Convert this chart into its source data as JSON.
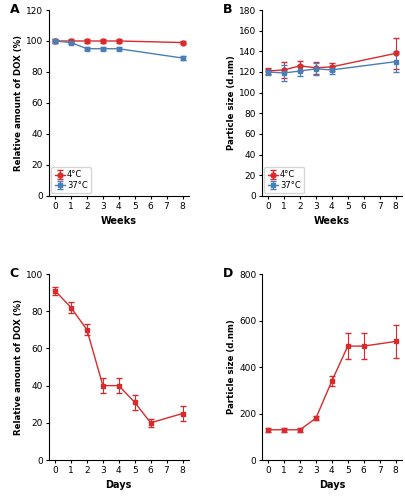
{
  "A": {
    "x": [
      0,
      1,
      2,
      3,
      4,
      8
    ],
    "red_y": [
      100,
      100,
      100,
      100,
      100,
      99
    ],
    "red_err": [
      1,
      1,
      1,
      1,
      1,
      1
    ],
    "blue_y": [
      100,
      99,
      95,
      95,
      95,
      89
    ],
    "blue_err": [
      1,
      1,
      1,
      1,
      1,
      1
    ],
    "ylabel": "Relative amount of DOX (%)",
    "xlabel": "Weeks",
    "ylim": [
      0,
      120
    ],
    "yticks": [
      0,
      20,
      40,
      60,
      80,
      100,
      120
    ],
    "xticks": [
      0,
      1,
      2,
      3,
      4,
      5,
      6,
      7,
      8
    ],
    "label": "A"
  },
  "B": {
    "x": [
      0,
      1,
      2,
      3,
      4,
      8
    ],
    "red_y": [
      121,
      122,
      126,
      124,
      125,
      138
    ],
    "red_err": [
      3,
      8,
      5,
      6,
      4,
      15
    ],
    "blue_y": [
      120,
      119,
      121,
      123,
      122,
      130
    ],
    "blue_err": [
      3,
      8,
      5,
      6,
      4,
      10
    ],
    "ylabel": "Particle size (d.nm)",
    "xlabel": "Weeks",
    "ylim": [
      0,
      180
    ],
    "yticks": [
      0,
      20,
      40,
      60,
      80,
      100,
      120,
      140,
      160,
      180
    ],
    "xticks": [
      0,
      1,
      2,
      3,
      4,
      5,
      6,
      7,
      8
    ],
    "label": "B"
  },
  "C": {
    "x": [
      0,
      1,
      2,
      3,
      4,
      5,
      6,
      8
    ],
    "red_y": [
      91,
      82,
      70,
      40,
      40,
      31,
      20,
      25
    ],
    "red_err": [
      2,
      3,
      3,
      4,
      4,
      4,
      2,
      4
    ],
    "ylabel": "Relative amount of DOX (%)",
    "xlabel": "Days",
    "ylim": [
      0,
      100
    ],
    "yticks": [
      0,
      20,
      40,
      60,
      80,
      100
    ],
    "xticks": [
      0,
      1,
      2,
      3,
      4,
      5,
      6,
      7,
      8
    ],
    "label": "C"
  },
  "D": {
    "x": [
      0,
      1,
      2,
      3,
      4,
      5,
      6,
      8
    ],
    "red_y": [
      130,
      130,
      130,
      180,
      340,
      490,
      490,
      510
    ],
    "red_err": [
      8,
      8,
      8,
      8,
      20,
      55,
      55,
      70
    ],
    "ylabel": "Particle size (d.nm)",
    "xlabel": "Days",
    "ylim": [
      0,
      800
    ],
    "yticks": [
      0,
      200,
      400,
      600,
      800
    ],
    "xticks": [
      0,
      1,
      2,
      3,
      4,
      5,
      6,
      7,
      8
    ],
    "label": "D"
  },
  "red_color": "#d92b2b",
  "blue_color": "#4a7fb5",
  "legend_4C": "4°C",
  "legend_37C": "37°C"
}
